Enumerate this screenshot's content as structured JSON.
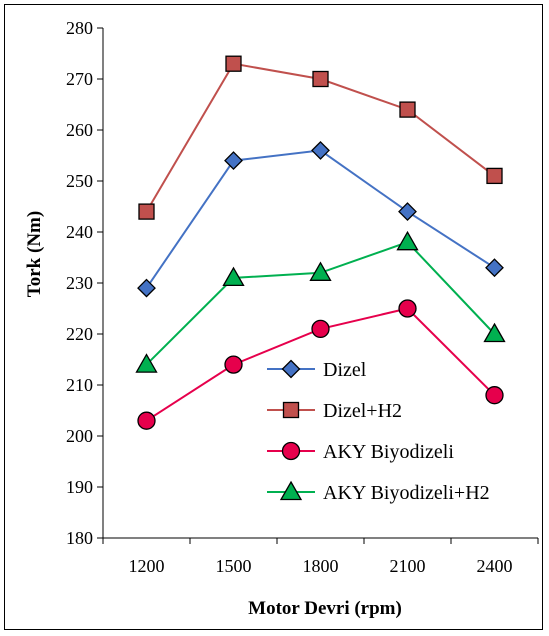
{
  "chart_data": {
    "type": "line",
    "xlabel": "Motor Devri (rpm)",
    "ylabel": "Tork (Nm)",
    "categories": [
      "1200",
      "1500",
      "1800",
      "2100",
      "2400"
    ],
    "ylim": [
      180,
      280
    ],
    "yticks": [
      180,
      190,
      200,
      210,
      220,
      230,
      240,
      250,
      260,
      270,
      280
    ],
    "grid": false,
    "legend_position": "bottom-right",
    "series": [
      {
        "name": "Dizel",
        "values": [
          229,
          254,
          256,
          244,
          233
        ],
        "color": "#4472C4",
        "marker": "diamond",
        "marker_fill": "#4472C4"
      },
      {
        "name": "Dizel+H2",
        "values": [
          244,
          273,
          270,
          264,
          251
        ],
        "color": "#C0504D",
        "marker": "square",
        "marker_fill": "#C0504D"
      },
      {
        "name": "AKY Biyodizeli",
        "values": [
          203,
          214,
          221,
          225,
          208
        ],
        "color": "#E6004C",
        "marker": "circle",
        "marker_fill": "#E6004C"
      },
      {
        "name": "AKY Biyodizeli+H2",
        "values": [
          214,
          231,
          232,
          238,
          220
        ],
        "color": "#00B050",
        "marker": "triangle",
        "marker_fill": "#00B050"
      }
    ]
  }
}
